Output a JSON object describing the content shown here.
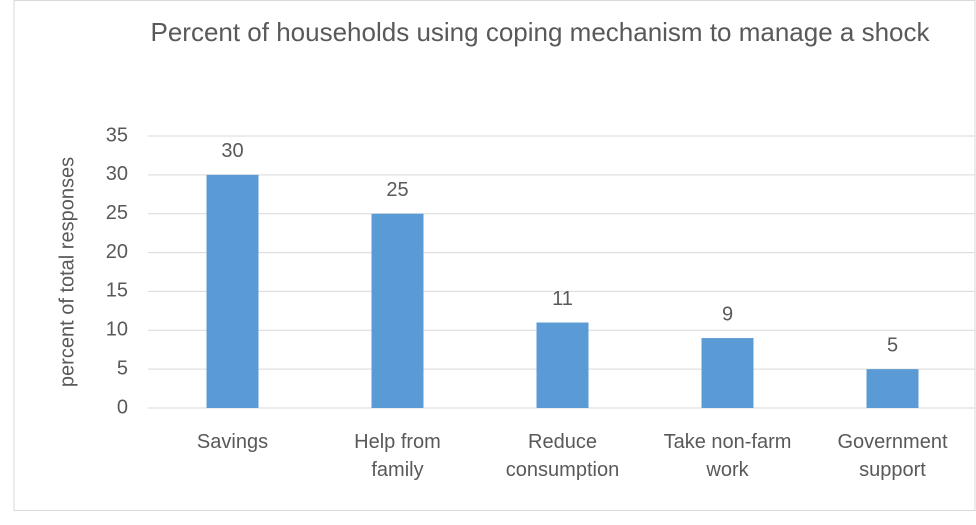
{
  "chart_data": {
    "type": "bar",
    "title": "Percent of households using coping mechanism to manage a shock",
    "y_label": "percent of total responses",
    "categories": [
      "Savings",
      "Help from family",
      "Reduce consumption",
      "Take non-farm work",
      "Government support"
    ],
    "values": [
      30,
      25,
      11,
      9,
      5
    ],
    "color": "#5b9bd5",
    "ylim": [
      0,
      35
    ],
    "yticks": [
      0,
      5,
      10,
      15,
      20,
      25,
      30,
      35
    ],
    "grid": true
  }
}
